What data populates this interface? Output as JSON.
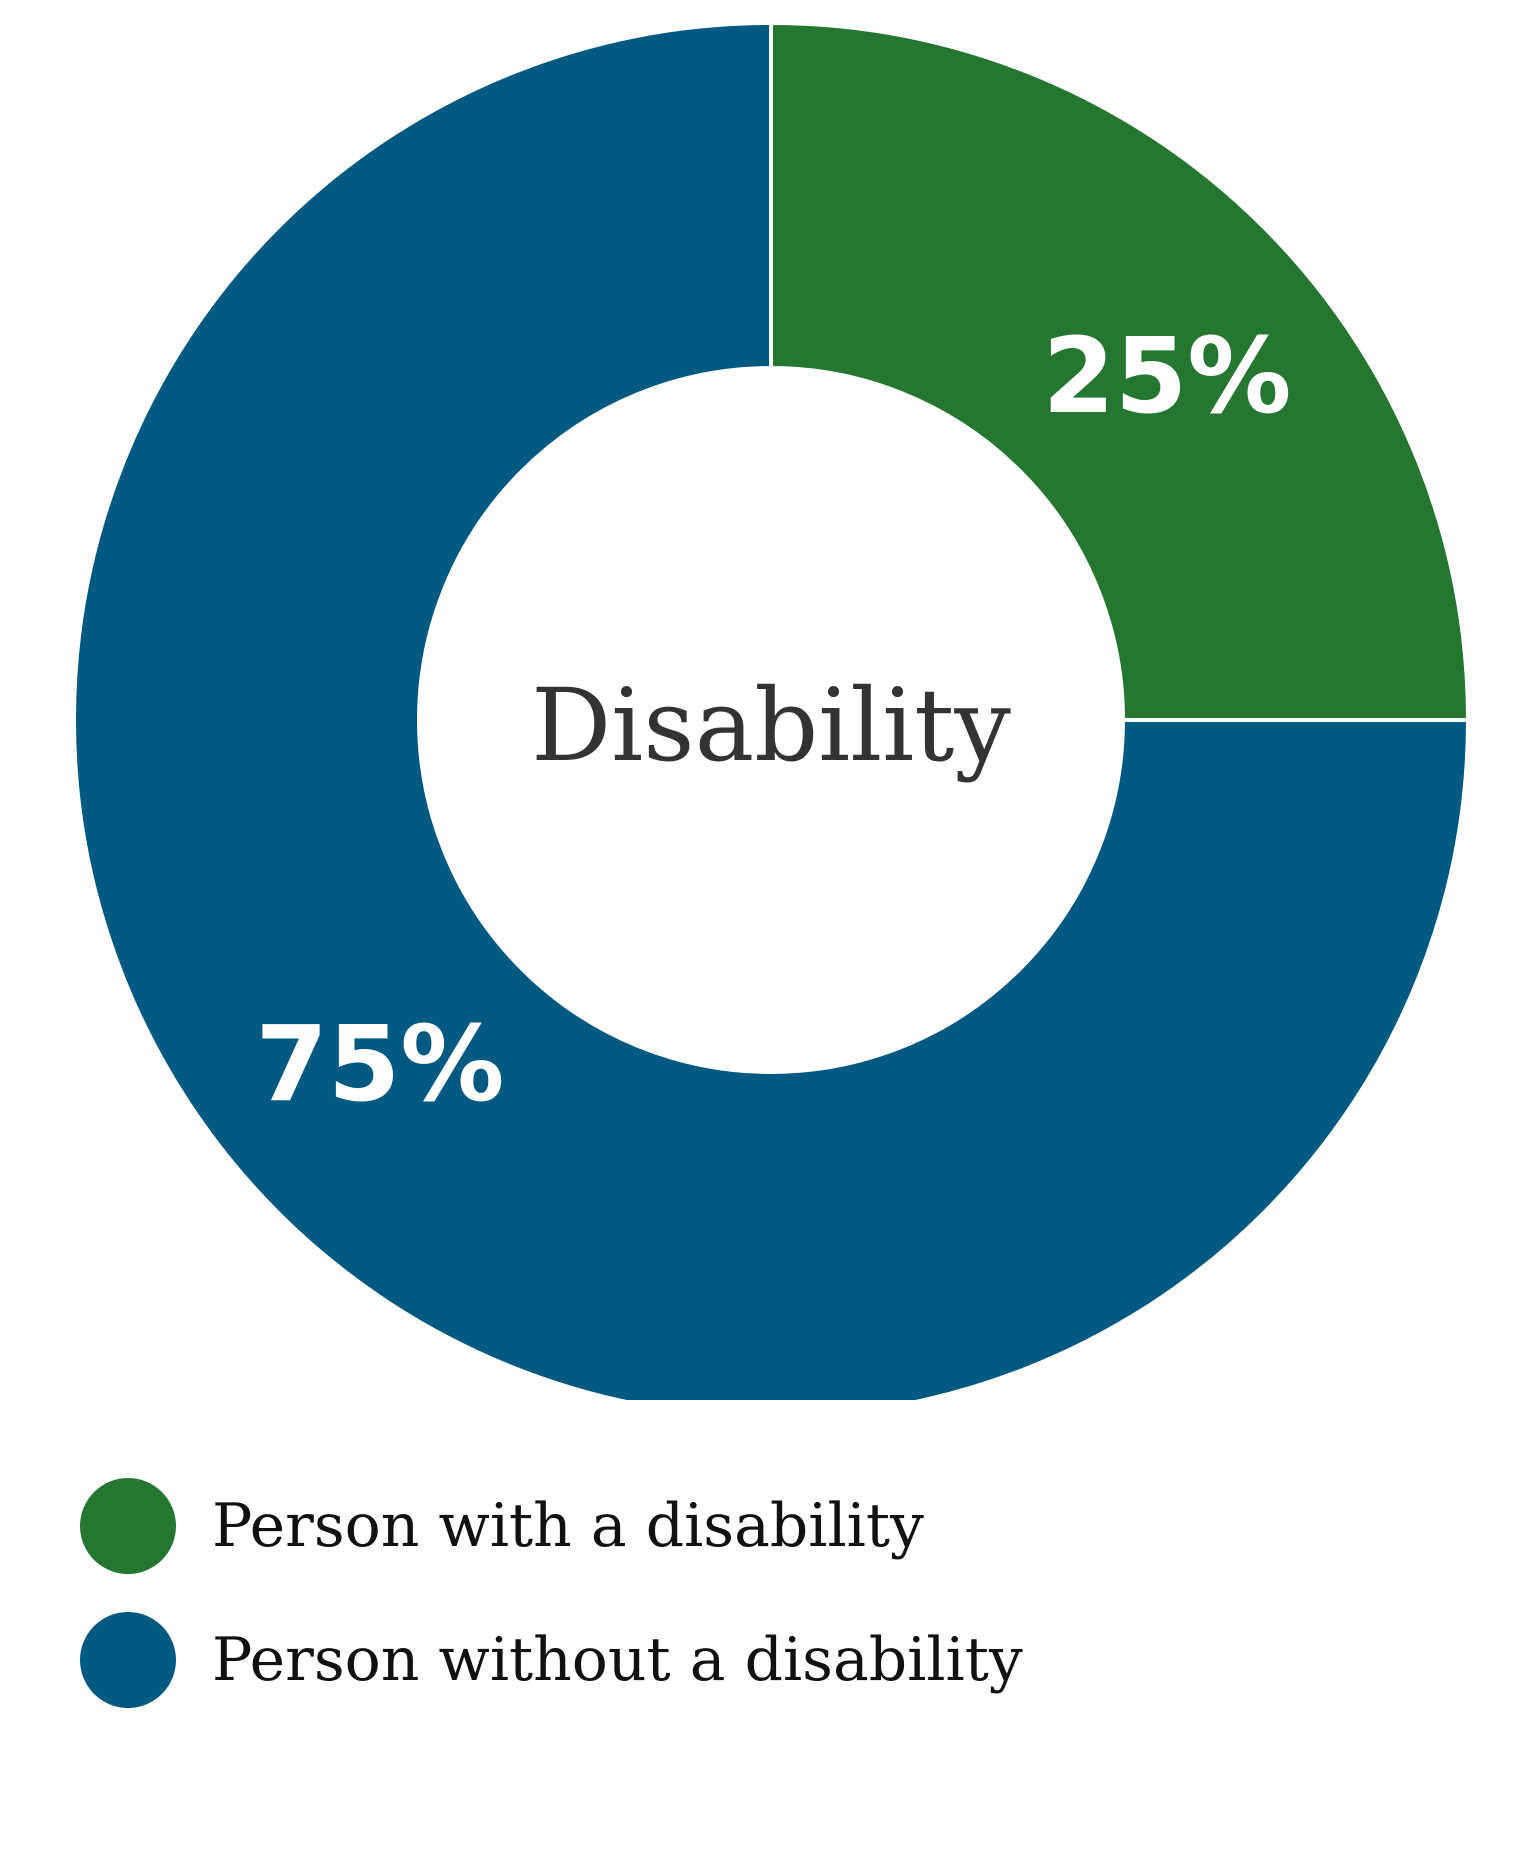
{
  "chart_data": {
    "type": "pie",
    "variant": "donut",
    "center_label": "Disability",
    "categories": [
      "Person with a disability",
      "Person without a disability"
    ],
    "values": [
      25,
      75
    ],
    "value_labels": [
      "25%",
      "75%"
    ],
    "colors": [
      "#247630",
      "#005981"
    ],
    "legend_position": "bottom-left"
  }
}
